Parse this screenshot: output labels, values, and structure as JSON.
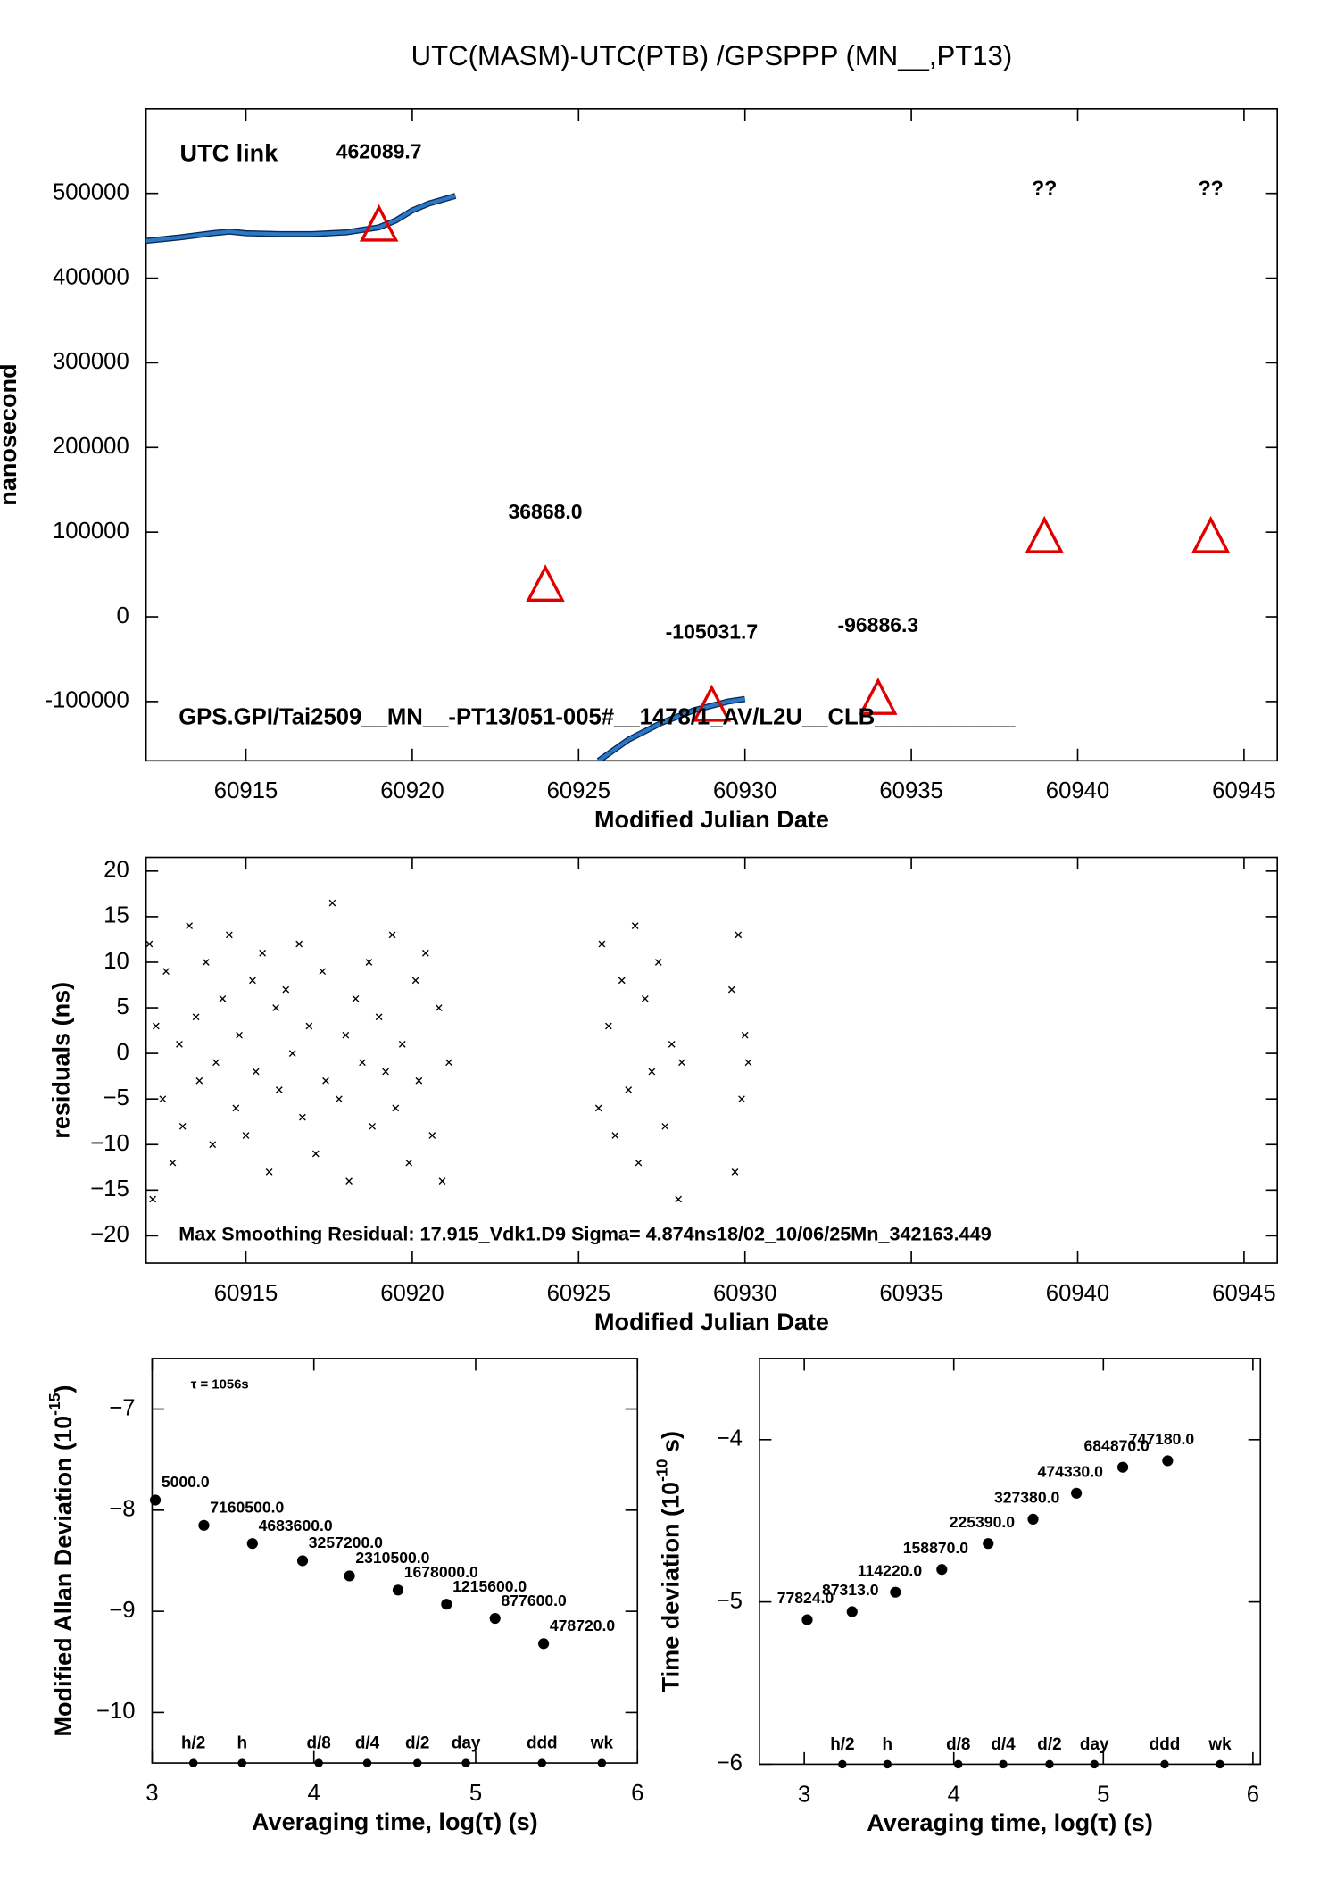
{
  "chart_data": [
    {
      "type": "line",
      "title": "UTC(MASM)-UTC(PTB)  /GPSPPP  (MN__,PT13)",
      "y_label": "nanosecond",
      "x_label": "Modified Julian Date",
      "xlim": [
        60912,
        60946
      ],
      "xticks": [
        60915,
        60920,
        60925,
        60930,
        60935,
        60940,
        60945
      ],
      "ylim": [
        -170000,
        600000
      ],
      "yticks": [
        -100000,
        0,
        100000,
        200000,
        300000,
        400000,
        500000
      ],
      "series": [
        {
          "name": "UTC link",
          "color": "#2a78c8",
          "legend_color": "#5a8a1a",
          "x": [
            60912,
            60913,
            60914,
            60914.5,
            60915,
            60916,
            60917,
            60918,
            60919,
            60919.5,
            60920,
            60920.5,
            60921.3,
            60923,
            60925.6,
            60926.5,
            60927.5,
            60928.5,
            60929.5,
            60930
          ],
          "values": [
            444000,
            448000,
            453000,
            455000,
            453000,
            452000,
            452000,
            454000,
            460000,
            468000,
            480000,
            488000,
            497000,
            null,
            -170000,
            -145000,
            -125000,
            -110000,
            -100000,
            -97000
          ]
        }
      ],
      "markers": {
        "color": "#e00000",
        "x": [
          60919,
          60924,
          60929,
          60934,
          60939,
          60944
        ],
        "values": [
          462089.7,
          36868.0,
          -105031.7,
          -96886.3,
          94000,
          94000
        ],
        "value_labels": [
          "462089.7",
          "36868.0",
          "-105031.7",
          "-96886.3",
          "??",
          "??"
        ]
      },
      "footer": "GPS.GPI/Tai2509__MN__-PT13/051-005#__1478/1_AV/L2U__CLB___________"
    },
    {
      "type": "scatter",
      "y_label": "residuals (ns)",
      "x_label": "Modified Julian Date",
      "xlim": [
        60912,
        60946
      ],
      "xticks": [
        60915,
        60920,
        60925,
        60930,
        60935,
        60940,
        60945
      ],
      "ylim": [
        -23,
        21.5
      ],
      "yticks": [
        {
          "value": -20,
          "label": "−20"
        },
        {
          "value": -15,
          "label": "−15"
        },
        {
          "value": -10,
          "label": "−10"
        },
        {
          "value": -5,
          "label": "−5"
        },
        0,
        5,
        10,
        15,
        20
      ],
      "color": "#000000",
      "x": [
        60912.1,
        60912.2,
        60912.3,
        60912.5,
        60912.6,
        60912.8,
        60913.0,
        60913.1,
        60913.3,
        60913.5,
        60913.6,
        60913.8,
        60914.0,
        60914.1,
        60914.3,
        60914.5,
        60914.7,
        60914.8,
        60915.0,
        60915.2,
        60915.3,
        60915.5,
        60915.7,
        60915.9,
        60916.0,
        60916.2,
        60916.4,
        60916.6,
        60916.7,
        60916.9,
        60917.1,
        60917.3,
        60917.4,
        60917.6,
        60917.8,
        60918.0,
        60918.1,
        60918.3,
        60918.5,
        60918.7,
        60918.8,
        60919.0,
        60919.2,
        60919.4,
        60919.5,
        60919.7,
        60919.9,
        60920.1,
        60920.2,
        60920.4,
        60920.6,
        60920.8,
        60920.9,
        60921.1,
        60925.6,
        60925.7,
        60925.9,
        60926.1,
        60926.3,
        60926.5,
        60926.7,
        60926.8,
        60927.0,
        60927.2,
        60927.4,
        60927.6,
        60927.8,
        60928.0,
        60928.1,
        60929.6,
        60929.7,
        60929.8,
        60929.9,
        60930.0,
        60930.1
      ],
      "values": [
        12,
        -16,
        3,
        -5,
        9,
        -12,
        1,
        -8,
        14,
        4,
        -3,
        10,
        -10,
        -1,
        6,
        13,
        -6,
        2,
        -9,
        8,
        -2,
        11,
        -13,
        5,
        -4,
        7,
        0,
        12,
        -7,
        3,
        -11,
        9,
        -3,
        16.5,
        -5,
        2,
        -14,
        6,
        -1,
        10,
        -8,
        4,
        -2,
        13,
        -6,
        1,
        -12,
        8,
        -3,
        11,
        -9,
        5,
        -14,
        -1,
        -6,
        12,
        3,
        -9,
        8,
        -4,
        14,
        -12,
        6,
        -2,
        10,
        -8,
        1,
        -16,
        -1,
        7,
        -13,
        13,
        -5,
        2,
        -1
      ],
      "footer": "Max Smoothing Residual: 17.915_Vdk1.D9  Sigma= 4.874ns18/02_10/06/25Mn_342163.449"
    },
    {
      "type": "scatter",
      "y_label": "Modified Allan Deviation (10",
      "y_label_exponent": "-15",
      "y_label_end": ")",
      "x_label": "Averaging time, log(τ) (s)",
      "xlim": [
        3,
        6
      ],
      "xticks": [
        3,
        4,
        5,
        6
      ],
      "ylim": [
        -10.5,
        -6.5
      ],
      "yticks": [
        {
          "value": -10,
          "label": "−10"
        },
        {
          "value": -9,
          "label": "−9"
        },
        {
          "value": -8,
          "label": "−8"
        },
        {
          "value": -7,
          "label": "−7"
        }
      ],
      "color": "#000000",
      "label_color": "#e00000",
      "note": "τ = 1056s",
      "x": [
        3.02,
        3.32,
        3.62,
        3.93,
        4.22,
        4.52,
        4.82,
        5.12,
        5.42
      ],
      "values": [
        -7.9,
        -8.15,
        -8.33,
        -8.5,
        -8.65,
        -8.79,
        -8.93,
        -9.07,
        -9.32
      ],
      "point_labels": [
        "5000.0",
        "7160500.0",
        "4683600.0",
        "3257200.0",
        "2310500.0",
        "1678000.0",
        "1215600.0",
        "877600.0",
        "478720.0"
      ],
      "tau_marks": {
        "x": [
          3.255,
          3.556,
          4.03,
          4.33,
          4.64,
          4.94,
          5.41,
          5.78
        ],
        "labels": [
          "h/2",
          "h",
          "d/8",
          "d/4",
          "d/2",
          "day",
          "ddd",
          "wk"
        ]
      }
    },
    {
      "type": "scatter",
      "y_label": "Time deviation (10",
      "y_label_exponent": "-10",
      "y_label_end": " s)",
      "x_label": "Averaging time, log(τ) (s)",
      "xlim": [
        2.7,
        6.05
      ],
      "xticks": [
        3,
        4,
        5,
        6
      ],
      "ylim": [
        -6,
        -3.5
      ],
      "yticks": [
        {
          "value": -6,
          "label": "−6"
        },
        {
          "value": -5,
          "label": "−5"
        },
        {
          "value": -4,
          "label": "−4"
        }
      ],
      "color": "#000000",
      "label_color": "#e00000",
      "x": [
        3.02,
        3.32,
        3.61,
        3.92,
        4.23,
        4.53,
        4.82,
        5.13,
        5.43
      ],
      "values": [
        -5.11,
        -5.06,
        -4.94,
        -4.8,
        -4.64,
        -4.49,
        -4.33,
        -4.17,
        -4.13
      ],
      "point_labels": [
        "77824.0",
        "87313.0",
        "114220.0",
        "158870.0",
        "225390.0",
        "327380.0",
        "474330.0",
        "684870.0",
        "747180.0"
      ],
      "tau_marks": {
        "x": [
          3.255,
          3.556,
          4.03,
          4.33,
          4.64,
          4.94,
          5.41,
          5.78
        ],
        "labels": [
          "h/2",
          "h",
          "d/8",
          "d/4",
          "d/2",
          "day",
          "ddd",
          "wk"
        ]
      }
    }
  ]
}
